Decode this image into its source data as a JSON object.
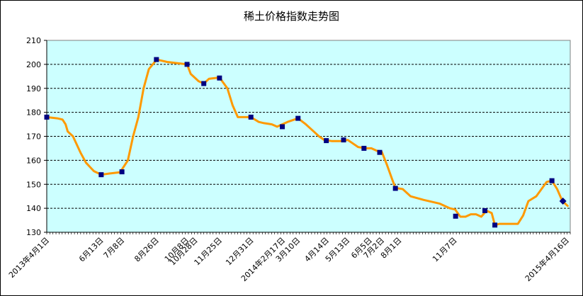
{
  "chart_data": {
    "type": "line",
    "title": "稀土价格指数走势图",
    "xlabel": "",
    "ylabel": "",
    "ylim": [
      130,
      210
    ],
    "yticks": [
      130,
      140,
      150,
      160,
      170,
      180,
      190,
      200,
      210
    ],
    "grid": true,
    "legend": "none",
    "colors": {
      "plot_bg": "#ccffff",
      "line": "#ff9900",
      "marker": "#000080",
      "grid": "#000000"
    },
    "x_tick_labels": [
      {
        "label": "2013年4月1日",
        "pos": 0
      },
      {
        "label": "6月13日",
        "pos": 0.1036
      },
      {
        "label": "7月8日",
        "pos": 0.1436
      },
      {
        "label": "8月26日",
        "pos": 0.2095
      },
      {
        "label": "10月8日",
        "pos": 0.267
      },
      {
        "label": "10月28日",
        "pos": 0.2835
      },
      {
        "label": "11月25日",
        "pos": 0.3301
      },
      {
        "label": "12月31日",
        "pos": 0.3905
      },
      {
        "label": "2014年2月17日",
        "pos": 0.4506
      },
      {
        "label": "3月10日",
        "pos": 0.4794
      },
      {
        "label": "4月14日",
        "pos": 0.5344
      },
      {
        "label": "5月13日",
        "pos": 0.5741
      },
      {
        "label": "6月5日",
        "pos": 0.6167
      },
      {
        "label": "7月2日",
        "pos": 0.6401
      },
      {
        "label": "8月1日",
        "pos": 0.6731
      },
      {
        "label": "11月7日",
        "pos": 0.7788
      },
      {
        "label": "2015年4月16日",
        "pos": 0.9931
      }
    ],
    "series": [
      {
        "line_points": [
          [
            0,
            178
          ],
          [
            0.02,
            177.5
          ],
          [
            0.03,
            177
          ],
          [
            0.036,
            175
          ],
          [
            0.04,
            172
          ],
          [
            0.05,
            170
          ],
          [
            0.065,
            163
          ],
          [
            0.075,
            159
          ],
          [
            0.09,
            155.5
          ],
          [
            0.104,
            154
          ],
          [
            0.12,
            154.5
          ],
          [
            0.14,
            155
          ],
          [
            0.155,
            160
          ],
          [
            0.165,
            170
          ],
          [
            0.175,
            178
          ],
          [
            0.185,
            190
          ],
          [
            0.195,
            198
          ],
          [
            0.21,
            202
          ],
          [
            0.23,
            201
          ],
          [
            0.25,
            200.5
          ],
          [
            0.268,
            200
          ],
          [
            0.275,
            196
          ],
          [
            0.29,
            193
          ],
          [
            0.3,
            192
          ],
          [
            0.31,
            194
          ],
          [
            0.33,
            194.5
          ],
          [
            0.345,
            190
          ],
          [
            0.355,
            183
          ],
          [
            0.365,
            178
          ],
          [
            0.39,
            178
          ],
          [
            0.405,
            176
          ],
          [
            0.415,
            175.5
          ],
          [
            0.43,
            175
          ],
          [
            0.44,
            174
          ],
          [
            0.46,
            176
          ],
          [
            0.48,
            177.5
          ],
          [
            0.495,
            175
          ],
          [
            0.51,
            172
          ],
          [
            0.52,
            170
          ],
          [
            0.53,
            168.5
          ],
          [
            0.545,
            168
          ],
          [
            0.56,
            168
          ],
          [
            0.575,
            168.5
          ],
          [
            0.585,
            167
          ],
          [
            0.595,
            165.5
          ],
          [
            0.61,
            165
          ],
          [
            0.62,
            165
          ],
          [
            0.63,
            164
          ],
          [
            0.64,
            163.5
          ],
          [
            0.65,
            158
          ],
          [
            0.66,
            152
          ],
          [
            0.666,
            148.5
          ],
          [
            0.68,
            148
          ],
          [
            0.695,
            145
          ],
          [
            0.72,
            143.5
          ],
          [
            0.75,
            142
          ],
          [
            0.77,
            140
          ],
          [
            0.78,
            139.5
          ],
          [
            0.79,
            136.5
          ],
          [
            0.8,
            136.5
          ],
          [
            0.81,
            137.5
          ],
          [
            0.82,
            137.5
          ],
          [
            0.83,
            136.5
          ],
          [
            0.84,
            139
          ],
          [
            0.85,
            138
          ],
          [
            0.856,
            133
          ],
          [
            0.865,
            133.5
          ],
          [
            0.88,
            133.5
          ],
          [
            0.9,
            133.5
          ],
          [
            0.91,
            137
          ],
          [
            0.92,
            143
          ],
          [
            0.935,
            145
          ],
          [
            0.945,
            148
          ],
          [
            0.955,
            151
          ],
          [
            0.965,
            151.5
          ],
          [
            0.975,
            148
          ],
          [
            0.985,
            143
          ],
          [
            0.995,
            141
          ]
        ],
        "markers": [
          {
            "x": 0,
            "y": 178
          },
          {
            "x": 0.104,
            "y": 154
          },
          {
            "x": 0.1436,
            "y": 155.2
          },
          {
            "x": 0.2095,
            "y": 202
          },
          {
            "x": 0.268,
            "y": 200
          },
          {
            "x": 0.3,
            "y": 192
          },
          {
            "x": 0.33,
            "y": 194.3
          },
          {
            "x": 0.39,
            "y": 178
          },
          {
            "x": 0.45,
            "y": 174
          },
          {
            "x": 0.48,
            "y": 177.5
          },
          {
            "x": 0.534,
            "y": 168.2
          },
          {
            "x": 0.567,
            "y": 168.5
          },
          {
            "x": 0.606,
            "y": 165
          },
          {
            "x": 0.636,
            "y": 163.3
          },
          {
            "x": 0.666,
            "y": 148.3
          },
          {
            "x": 0.781,
            "y": 136.7
          },
          {
            "x": 0.837,
            "y": 139
          },
          {
            "x": 0.856,
            "y": 133
          },
          {
            "x": 0.965,
            "y": 151.5
          }
        ],
        "end_marker": {
          "x": 0.986,
          "y": 143
        }
      }
    ]
  }
}
